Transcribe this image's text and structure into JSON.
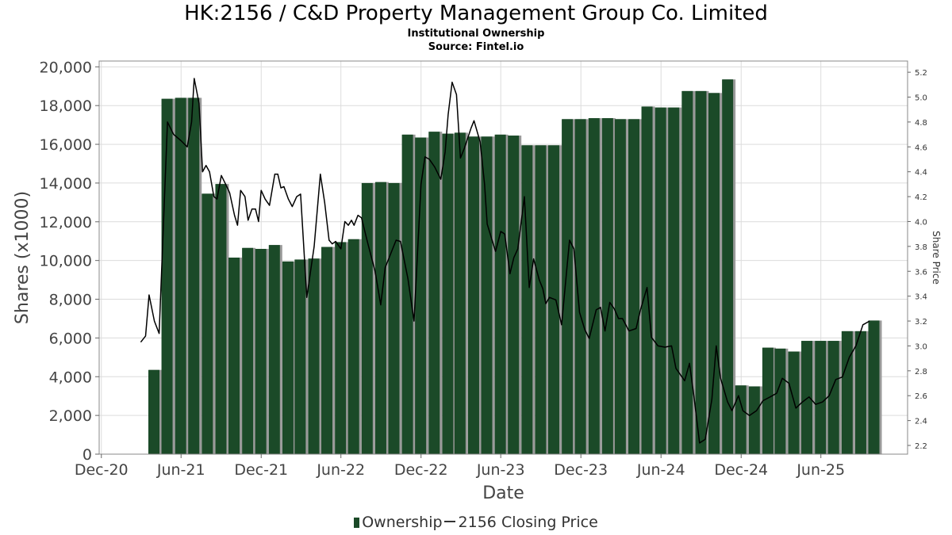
{
  "header": {
    "title": "HK:2156 / C&D Property Management Group Co. Limited",
    "subtitle": "Institutional Ownership",
    "source": "Source: Fintel.io"
  },
  "legend": {
    "ownership": "Ownership",
    "price": "2156 Closing Price"
  },
  "colors": {
    "bar": "#1b4a28",
    "bar_shadow": "#9a9a9a",
    "price_line": "#000000",
    "grid": "#dcdcdc"
  },
  "chart_data": {
    "type": "bar",
    "title": "HK:2156 / C&D Property Management Group Co. Limited",
    "xlabel": "Date",
    "ylabel": "Shares (x1000)",
    "y2label": "Share Price",
    "ylim": [
      0,
      20300
    ],
    "y2lim": [
      2.13,
      5.29
    ],
    "xlim": [
      "2020-11-26",
      "2025-12-16"
    ],
    "grid": true,
    "legend_position": "bottom",
    "x_ticks": [
      "Dec-20",
      "Jun-21",
      "Dec-21",
      "Jun-22",
      "Dec-22",
      "Jun-23",
      "Dec-23",
      "Jun-24",
      "Dec-24",
      "Jun-25"
    ],
    "y_ticks": [
      "0",
      "2,000",
      "4,000",
      "6,000",
      "8,000",
      "10,000",
      "12,000",
      "14,000",
      "16,000",
      "18,000",
      "20,000"
    ],
    "y2_ticks": [
      "2.2",
      "2.4",
      "2.6",
      "2.8",
      "3.0",
      "3.2",
      "3.4",
      "3.6",
      "3.8",
      "4.0",
      "4.2",
      "4.4",
      "4.6",
      "4.8",
      "5.0",
      "5.2"
    ],
    "series": [
      {
        "name": "Ownership",
        "points": [
          {
            "date": "2021-03-31",
            "value": 4350
          },
          {
            "date": "2021-04-30",
            "value": 18350
          },
          {
            "date": "2021-05-31",
            "value": 18400
          },
          {
            "date": "2021-06-30",
            "value": 18400
          },
          {
            "date": "2021-07-31",
            "value": 13450
          },
          {
            "date": "2021-08-31",
            "value": 13950
          },
          {
            "date": "2021-09-30",
            "value": 10150
          },
          {
            "date": "2021-10-31",
            "value": 10650
          },
          {
            "date": "2021-11-30",
            "value": 10600
          },
          {
            "date": "2021-12-31",
            "value": 10800
          },
          {
            "date": "2022-01-31",
            "value": 9950
          },
          {
            "date": "2022-02-28",
            "value": 10050
          },
          {
            "date": "2022-03-31",
            "value": 10100
          },
          {
            "date": "2022-04-30",
            "value": 10700
          },
          {
            "date": "2022-05-31",
            "value": 10950
          },
          {
            "date": "2022-06-30",
            "value": 11100
          },
          {
            "date": "2022-07-31",
            "value": 14000
          },
          {
            "date": "2022-08-31",
            "value": 14050
          },
          {
            "date": "2022-09-30",
            "value": 14000
          },
          {
            "date": "2022-10-31",
            "value": 16500
          },
          {
            "date": "2022-11-30",
            "value": 16350
          },
          {
            "date": "2022-12-31",
            "value": 16650
          },
          {
            "date": "2023-01-31",
            "value": 16550
          },
          {
            "date": "2023-02-28",
            "value": 16600
          },
          {
            "date": "2023-03-31",
            "value": 16400
          },
          {
            "date": "2023-04-30",
            "value": 16400
          },
          {
            "date": "2023-05-31",
            "value": 16500
          },
          {
            "date": "2023-06-30",
            "value": 16450
          },
          {
            "date": "2023-07-31",
            "value": 15950
          },
          {
            "date": "2023-08-31",
            "value": 15950
          },
          {
            "date": "2023-09-30",
            "value": 15950
          },
          {
            "date": "2023-10-31",
            "value": 17300
          },
          {
            "date": "2023-11-30",
            "value": 17300
          },
          {
            "date": "2023-12-31",
            "value": 17350
          },
          {
            "date": "2024-01-31",
            "value": 17350
          },
          {
            "date": "2024-02-29",
            "value": 17300
          },
          {
            "date": "2024-03-31",
            "value": 17300
          },
          {
            "date": "2024-04-30",
            "value": 17950
          },
          {
            "date": "2024-05-31",
            "value": 17900
          },
          {
            "date": "2024-06-30",
            "value": 17900
          },
          {
            "date": "2024-07-31",
            "value": 18750
          },
          {
            "date": "2024-08-31",
            "value": 18750
          },
          {
            "date": "2024-09-30",
            "value": 18650
          },
          {
            "date": "2024-10-31",
            "value": 19350
          },
          {
            "date": "2024-11-30",
            "value": 3550
          },
          {
            "date": "2024-12-31",
            "value": 3500
          },
          {
            "date": "2025-01-31",
            "value": 5500
          },
          {
            "date": "2025-02-28",
            "value": 5450
          },
          {
            "date": "2025-03-31",
            "value": 5300
          },
          {
            "date": "2025-04-30",
            "value": 5850
          },
          {
            "date": "2025-05-31",
            "value": 5850
          },
          {
            "date": "2025-06-30",
            "value": 5850
          },
          {
            "date": "2025-07-31",
            "value": 6350
          },
          {
            "date": "2025-08-31",
            "value": 6350
          },
          {
            "date": "2025-09-30",
            "value": 6900
          }
        ]
      },
      {
        "name": "2156 Closing Price",
        "axis": "right",
        "points": [
          {
            "date": "2021-03-01",
            "value": 3.03
          },
          {
            "date": "2021-03-12",
            "value": 3.08
          },
          {
            "date": "2021-03-20",
            "value": 3.41
          },
          {
            "date": "2021-04-01",
            "value": 3.2
          },
          {
            "date": "2021-04-12",
            "value": 3.1
          },
          {
            "date": "2021-05-01",
            "value": 4.8
          },
          {
            "date": "2021-05-15",
            "value": 4.7
          },
          {
            "date": "2021-06-01",
            "value": 4.65
          },
          {
            "date": "2021-06-15",
            "value": 4.6
          },
          {
            "date": "2021-06-25",
            "value": 4.8
          },
          {
            "date": "2021-07-01",
            "value": 5.15
          },
          {
            "date": "2021-07-12",
            "value": 4.95
          },
          {
            "date": "2021-07-20",
            "value": 4.4
          },
          {
            "date": "2021-07-28",
            "value": 4.45
          },
          {
            "date": "2021-08-05",
            "value": 4.4
          },
          {
            "date": "2021-08-15",
            "value": 4.2
          },
          {
            "date": "2021-08-22",
            "value": 4.18
          },
          {
            "date": "2021-09-01",
            "value": 4.37
          },
          {
            "date": "2021-09-15",
            "value": 4.27
          },
          {
            "date": "2021-09-20",
            "value": 4.23
          },
          {
            "date": "2021-10-01",
            "value": 4.05
          },
          {
            "date": "2021-10-08",
            "value": 3.97
          },
          {
            "date": "2021-10-15",
            "value": 4.25
          },
          {
            "date": "2021-10-25",
            "value": 4.2
          },
          {
            "date": "2021-11-01",
            "value": 4.01
          },
          {
            "date": "2021-11-10",
            "value": 4.1
          },
          {
            "date": "2021-11-18",
            "value": 4.1
          },
          {
            "date": "2021-11-25",
            "value": 4.0
          },
          {
            "date": "2021-12-01",
            "value": 4.25
          },
          {
            "date": "2021-12-10",
            "value": 4.18
          },
          {
            "date": "2021-12-20",
            "value": 4.13
          },
          {
            "date": "2022-01-01",
            "value": 4.38
          },
          {
            "date": "2022-01-08",
            "value": 4.38
          },
          {
            "date": "2022-01-15",
            "value": 4.27
          },
          {
            "date": "2022-01-22",
            "value": 4.28
          },
          {
            "date": "2022-02-01",
            "value": 4.18
          },
          {
            "date": "2022-02-10",
            "value": 4.12
          },
          {
            "date": "2022-02-20",
            "value": 4.2
          },
          {
            "date": "2022-03-01",
            "value": 4.22
          },
          {
            "date": "2022-03-15",
            "value": 3.39
          },
          {
            "date": "2022-04-01",
            "value": 3.8
          },
          {
            "date": "2022-04-15",
            "value": 4.38
          },
          {
            "date": "2022-04-25",
            "value": 4.15
          },
          {
            "date": "2022-05-05",
            "value": 3.85
          },
          {
            "date": "2022-05-12",
            "value": 3.82
          },
          {
            "date": "2022-05-20",
            "value": 3.84
          },
          {
            "date": "2022-06-01",
            "value": 3.78
          },
          {
            "date": "2022-06-10",
            "value": 4.0
          },
          {
            "date": "2022-06-18",
            "value": 3.97
          },
          {
            "date": "2022-06-25",
            "value": 4.01
          },
          {
            "date": "2022-07-01",
            "value": 3.97
          },
          {
            "date": "2022-07-10",
            "value": 4.05
          },
          {
            "date": "2022-07-18",
            "value": 4.03
          },
          {
            "date": "2022-08-01",
            "value": 3.83
          },
          {
            "date": "2022-08-18",
            "value": 3.6
          },
          {
            "date": "2022-08-31",
            "value": 3.33
          },
          {
            "date": "2022-09-10",
            "value": 3.63
          },
          {
            "date": "2022-10-05",
            "value": 3.85
          },
          {
            "date": "2022-10-15",
            "value": 3.84
          },
          {
            "date": "2022-11-01",
            "value": 3.54
          },
          {
            "date": "2022-11-15",
            "value": 3.2
          },
          {
            "date": "2022-12-01",
            "value": 4.3
          },
          {
            "date": "2022-12-10",
            "value": 4.52
          },
          {
            "date": "2022-12-20",
            "value": 4.5
          },
          {
            "date": "2023-01-01",
            "value": 4.44
          },
          {
            "date": "2023-01-15",
            "value": 4.34
          },
          {
            "date": "2023-01-25",
            "value": 4.56
          },
          {
            "date": "2023-02-01",
            "value": 4.86
          },
          {
            "date": "2023-02-10",
            "value": 5.12
          },
          {
            "date": "2023-02-20",
            "value": 5.02
          },
          {
            "date": "2023-03-01",
            "value": 4.51
          },
          {
            "date": "2023-03-10",
            "value": 4.59
          },
          {
            "date": "2023-03-25",
            "value": 4.75
          },
          {
            "date": "2023-04-01",
            "value": 4.81
          },
          {
            "date": "2023-04-15",
            "value": 4.64
          },
          {
            "date": "2023-04-25",
            "value": 4.3
          },
          {
            "date": "2023-05-01",
            "value": 3.98
          },
          {
            "date": "2023-05-20",
            "value": 3.76
          },
          {
            "date": "2023-06-01",
            "value": 3.92
          },
          {
            "date": "2023-06-10",
            "value": 3.9
          },
          {
            "date": "2023-06-22",
            "value": 3.58
          },
          {
            "date": "2023-07-01",
            "value": 3.71
          },
          {
            "date": "2023-07-10",
            "value": 3.78
          },
          {
            "date": "2023-07-25",
            "value": 4.2
          },
          {
            "date": "2023-08-05",
            "value": 3.47
          },
          {
            "date": "2023-08-15",
            "value": 3.7
          },
          {
            "date": "2023-08-28",
            "value": 3.53
          },
          {
            "date": "2023-09-05",
            "value": 3.46
          },
          {
            "date": "2023-09-12",
            "value": 3.34
          },
          {
            "date": "2023-09-20",
            "value": 3.39
          },
          {
            "date": "2023-10-05",
            "value": 3.37
          },
          {
            "date": "2023-10-18",
            "value": 3.17
          },
          {
            "date": "2023-11-05",
            "value": 3.85
          },
          {
            "date": "2023-11-15",
            "value": 3.78
          },
          {
            "date": "2023-11-28",
            "value": 3.27
          },
          {
            "date": "2023-12-10",
            "value": 3.13
          },
          {
            "date": "2023-12-20",
            "value": 3.06
          },
          {
            "date": "2024-01-05",
            "value": 3.29
          },
          {
            "date": "2024-01-15",
            "value": 3.31
          },
          {
            "date": "2024-01-25",
            "value": 3.12
          },
          {
            "date": "2024-02-05",
            "value": 3.35
          },
          {
            "date": "2024-02-15",
            "value": 3.3
          },
          {
            "date": "2024-02-25",
            "value": 3.22
          },
          {
            "date": "2024-03-05",
            "value": 3.22
          },
          {
            "date": "2024-03-20",
            "value": 3.12
          },
          {
            "date": "2024-04-05",
            "value": 3.14
          },
          {
            "date": "2024-04-15",
            "value": 3.29
          },
          {
            "date": "2024-04-30",
            "value": 3.47
          },
          {
            "date": "2024-05-10",
            "value": 3.07
          },
          {
            "date": "2024-05-25",
            "value": 3.0
          },
          {
            "date": "2024-06-10",
            "value": 2.99
          },
          {
            "date": "2024-06-25",
            "value": 3.0
          },
          {
            "date": "2024-07-05",
            "value": 2.82
          },
          {
            "date": "2024-07-25",
            "value": 2.72
          },
          {
            "date": "2024-08-05",
            "value": 2.86
          },
          {
            "date": "2024-08-15",
            "value": 2.6
          },
          {
            "date": "2024-08-28",
            "value": 2.22
          },
          {
            "date": "2024-09-10",
            "value": 2.25
          },
          {
            "date": "2024-09-25",
            "value": 2.57
          },
          {
            "date": "2024-10-05",
            "value": 3.0
          },
          {
            "date": "2024-10-15",
            "value": 2.74
          },
          {
            "date": "2024-10-31",
            "value": 2.55
          },
          {
            "date": "2024-11-10",
            "value": 2.48
          },
          {
            "date": "2024-11-25",
            "value": 2.6
          },
          {
            "date": "2024-12-05",
            "value": 2.48
          },
          {
            "date": "2024-12-20",
            "value": 2.44
          },
          {
            "date": "2025-01-05",
            "value": 2.48
          },
          {
            "date": "2025-01-20",
            "value": 2.56
          },
          {
            "date": "2025-02-05",
            "value": 2.59
          },
          {
            "date": "2025-02-20",
            "value": 2.62
          },
          {
            "date": "2025-03-05",
            "value": 2.74
          },
          {
            "date": "2025-03-20",
            "value": 2.7
          },
          {
            "date": "2025-04-05",
            "value": 2.5
          },
          {
            "date": "2025-04-20",
            "value": 2.55
          },
          {
            "date": "2025-05-05",
            "value": 2.59
          },
          {
            "date": "2025-05-20",
            "value": 2.53
          },
          {
            "date": "2025-06-05",
            "value": 2.55
          },
          {
            "date": "2025-06-20",
            "value": 2.6
          },
          {
            "date": "2025-07-05",
            "value": 2.73
          },
          {
            "date": "2025-07-20",
            "value": 2.75
          },
          {
            "date": "2025-08-05",
            "value": 2.91
          },
          {
            "date": "2025-08-20",
            "value": 3.0
          },
          {
            "date": "2025-09-05",
            "value": 3.17
          },
          {
            "date": "2025-09-20",
            "value": 3.2
          }
        ]
      }
    ]
  }
}
